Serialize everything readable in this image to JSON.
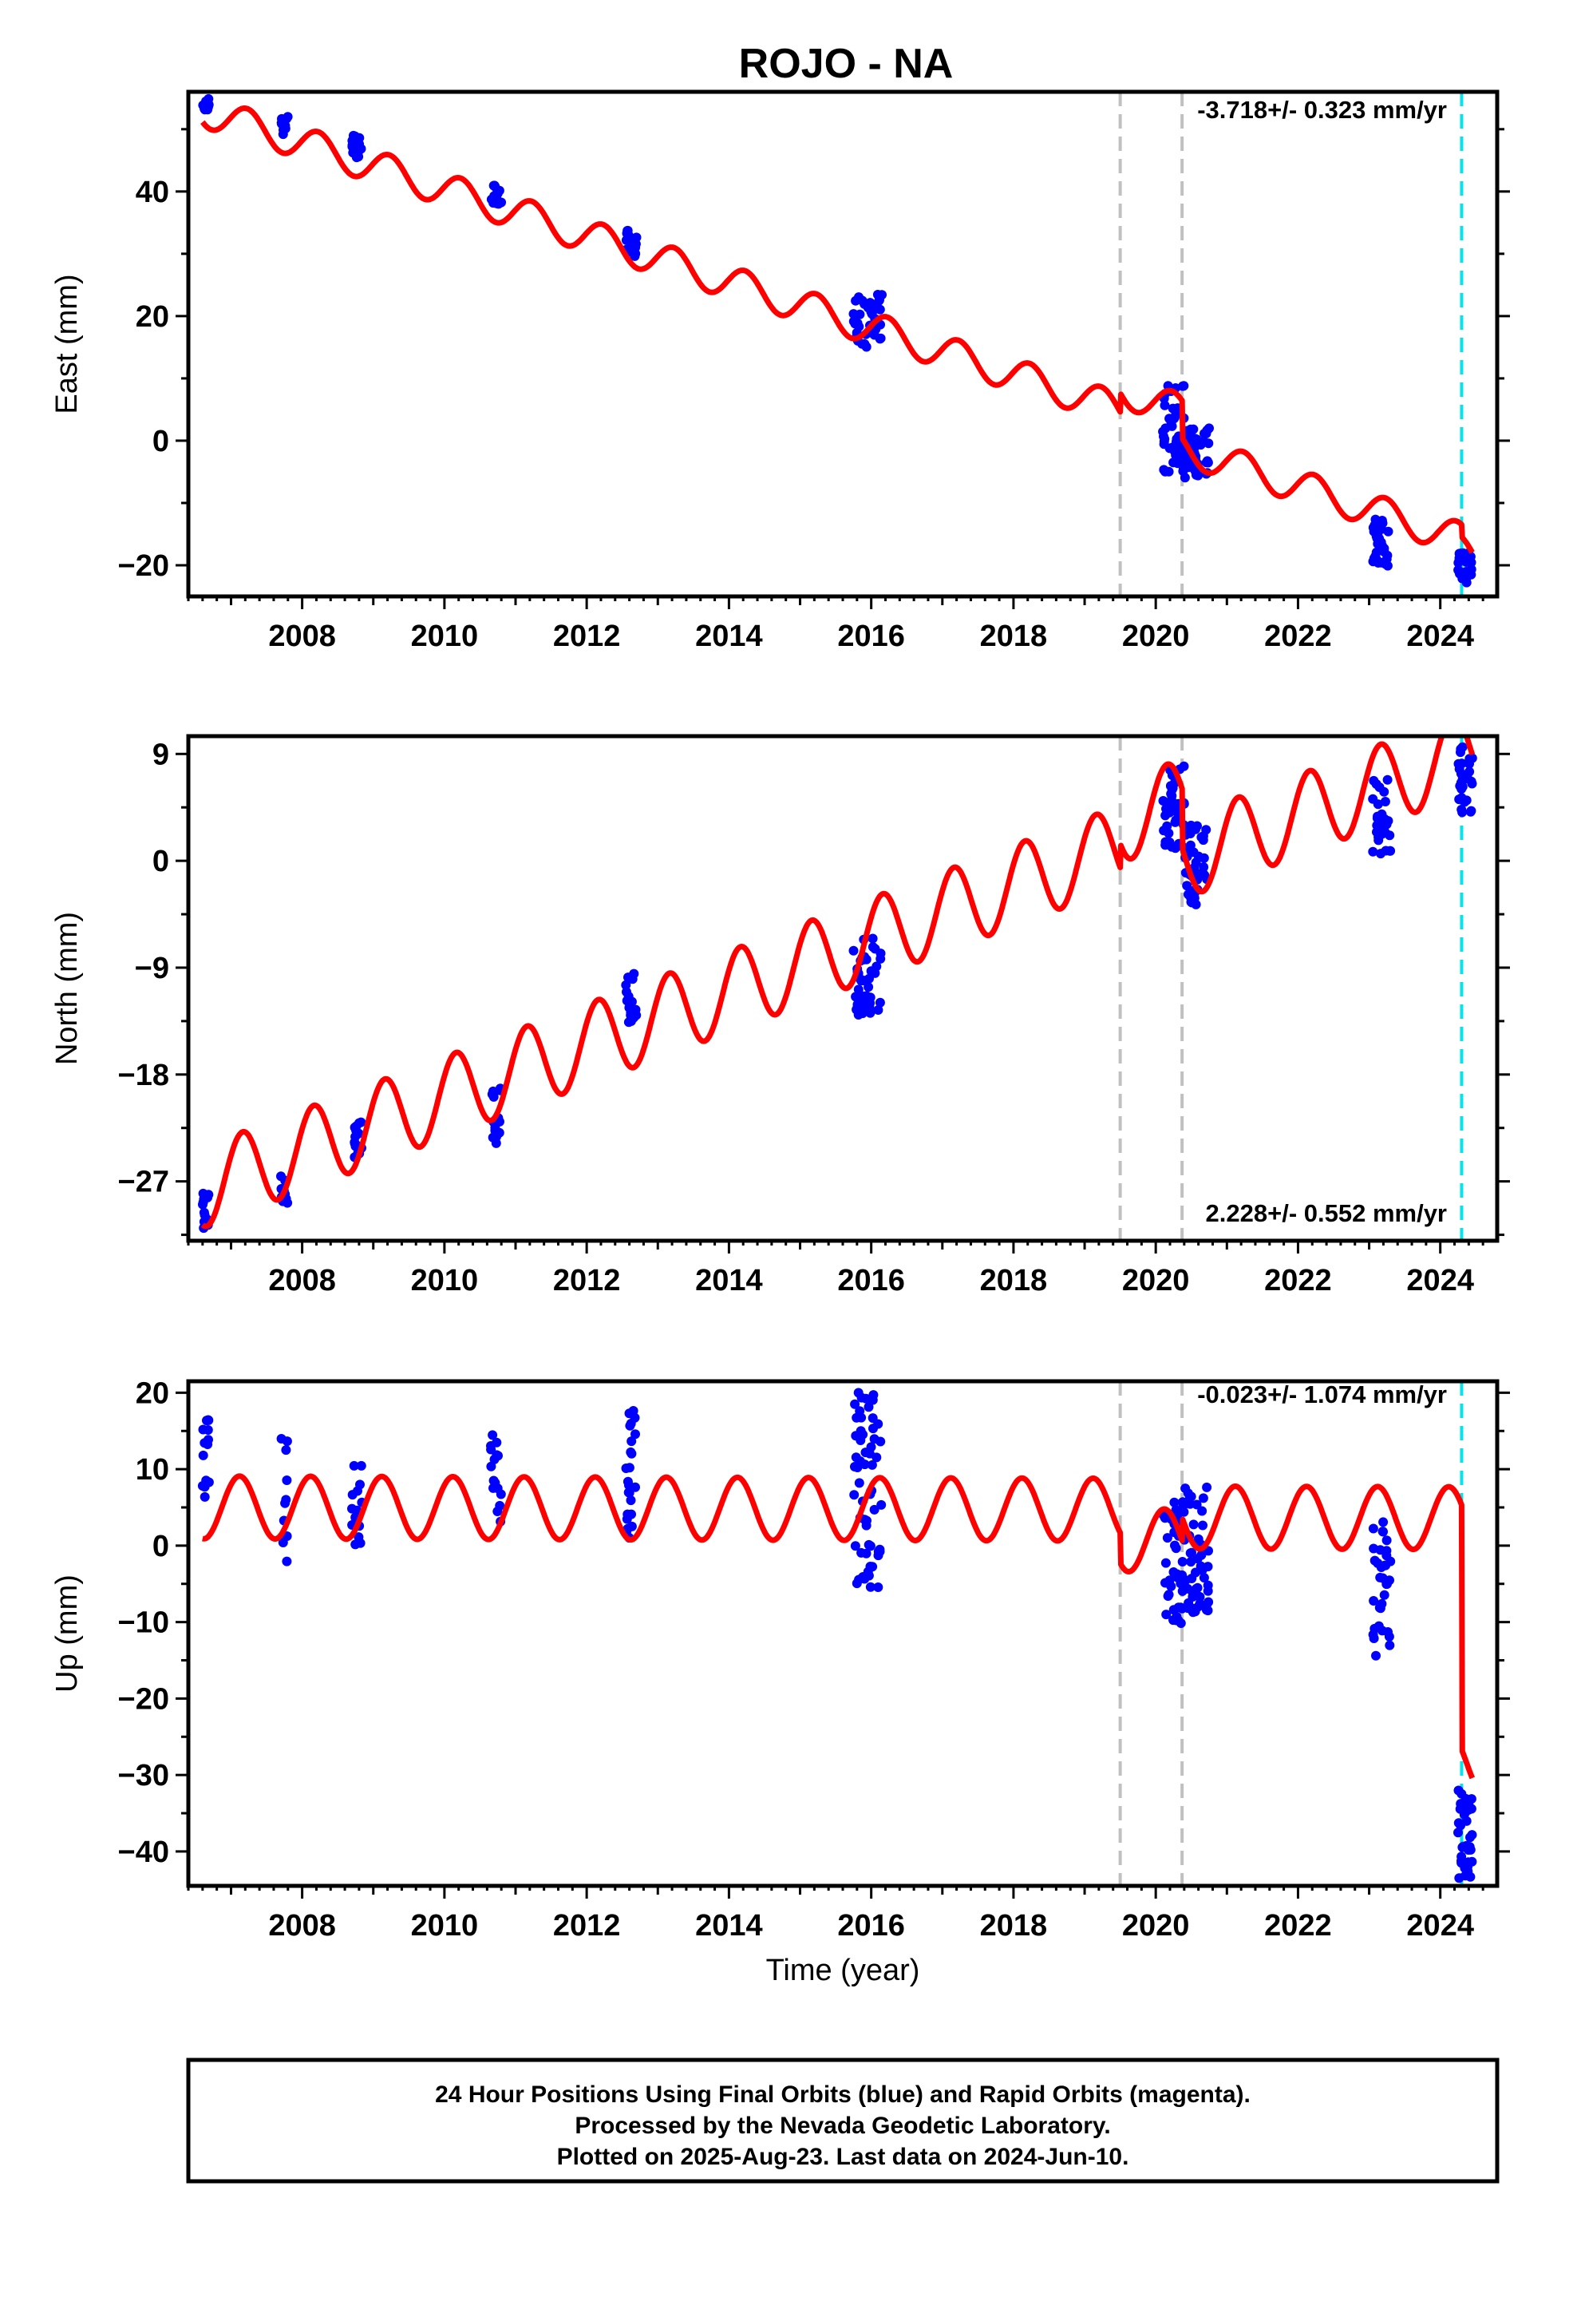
{
  "title": "ROJO - NA",
  "footer": {
    "line1": "24 Hour Positions Using Final Orbits (blue) and Rapid Orbits (magenta).",
    "line2": "Processed by the Nevada Geodetic Laboratory.",
    "line3": "Plotted on 2025-Aug-23. Last data on 2024-Jun-10."
  },
  "colors": {
    "data": "#0000ff",
    "model": "#ff0000",
    "gray_line": "#c0c0c0",
    "cyan_line": "#00e5ee",
    "frame": "#000000"
  },
  "chart_data": [
    {
      "type": "scatter",
      "component": "East",
      "ylabel": "East (mm)",
      "xlabel": "",
      "rate_text": "-3.718+/- 0.323 mm/yr",
      "xlim": [
        2006.4,
        2024.8
      ],
      "ylim": [
        -25,
        56
      ],
      "x_ticks": [
        2008,
        2010,
        2012,
        2014,
        2016,
        2018,
        2020,
        2022,
        2024
      ],
      "y_ticks": [
        -20,
        0,
        20,
        40
      ],
      "vlines_gray": [
        2019.5,
        2020.37
      ],
      "vline_cyan": 2024.3,
      "model": {
        "start_year": 2006.6,
        "start_value": 53.0,
        "rate": -3.718,
        "amp_sin": 2.6,
        "amp_cos": 0.4,
        "steps": [
          {
            "year": 2019.5,
            "size": 3.0
          },
          {
            "year": 2020.37,
            "size": -6.0
          },
          {
            "year": 2024.3,
            "size": -2.0
          }
        ]
      },
      "campaigns": [
        {
          "x0": 2006.6,
          "x1": 2006.7,
          "y": [
            53,
            55
          ],
          "n": 14
        },
        {
          "x0": 2007.7,
          "x1": 2007.8,
          "y": [
            49,
            52
          ],
          "n": 10
        },
        {
          "x0": 2008.7,
          "x1": 2008.85,
          "y": [
            45,
            49
          ],
          "n": 16
        },
        {
          "x0": 2010.65,
          "x1": 2010.8,
          "y": [
            38,
            41
          ],
          "n": 16
        },
        {
          "x0": 2012.55,
          "x1": 2012.7,
          "y": [
            29,
            34
          ],
          "n": 18
        },
        {
          "x0": 2015.75,
          "x1": 2016.15,
          "y": [
            15,
            24
          ],
          "n": 45
        },
        {
          "x0": 2020.1,
          "x1": 2020.4,
          "y": [
            -5,
            9
          ],
          "n": 45
        },
        {
          "x0": 2020.4,
          "x1": 2020.75,
          "y": [
            -6,
            2
          ],
          "n": 45
        },
        {
          "x0": 2023.05,
          "x1": 2023.3,
          "y": [
            -21,
            -12
          ],
          "n": 30
        },
        {
          "x0": 2024.25,
          "x1": 2024.45,
          "y": [
            -23,
            -18
          ],
          "n": 30
        }
      ]
    },
    {
      "type": "scatter",
      "component": "North",
      "ylabel": "North (mm)",
      "xlabel": "",
      "rate_text": "2.228+/- 0.552 mm/yr",
      "xlim": [
        2006.4,
        2024.8
      ],
      "ylim": [
        -32,
        10.5
      ],
      "x_ticks": [
        2008,
        2010,
        2012,
        2014,
        2016,
        2018,
        2020,
        2022,
        2024
      ],
      "y_ticks": [
        -27,
        -18,
        -9,
        0,
        9
      ],
      "vlines_gray": [
        2019.5,
        2020.37
      ],
      "vline_cyan": 2024.3,
      "model": {
        "start_year": 2006.6,
        "start_value": -27.5,
        "rate": 2.228,
        "amp_sin": 2.9,
        "amp_cos": 1.8,
        "steps": [
          {
            "year": 2019.5,
            "size": 2.0
          },
          {
            "year": 2020.37,
            "size": -5.0
          },
          {
            "year": 2024.3,
            "size": 0.5
          }
        ]
      },
      "campaigns": [
        {
          "x0": 2006.6,
          "x1": 2006.7,
          "y": [
            -31,
            -28
          ],
          "n": 14
        },
        {
          "x0": 2007.7,
          "x1": 2007.8,
          "y": [
            -29,
            -26.5
          ],
          "n": 10
        },
        {
          "x0": 2008.7,
          "x1": 2008.85,
          "y": [
            -25,
            -22
          ],
          "n": 16
        },
        {
          "x0": 2010.65,
          "x1": 2010.8,
          "y": [
            -24,
            -19
          ],
          "n": 16
        },
        {
          "x0": 2012.55,
          "x1": 2012.7,
          "y": [
            -14,
            -9.5
          ],
          "n": 18
        },
        {
          "x0": 2015.75,
          "x1": 2016.15,
          "y": [
            -13,
            -6
          ],
          "n": 45
        },
        {
          "x0": 2020.1,
          "x1": 2020.4,
          "y": [
            1,
            8.5
          ],
          "n": 40
        },
        {
          "x0": 2020.4,
          "x1": 2020.75,
          "y": [
            -4,
            3
          ],
          "n": 45
        },
        {
          "x0": 2023.05,
          "x1": 2023.3,
          "y": [
            0,
            7
          ],
          "n": 30
        },
        {
          "x0": 2024.25,
          "x1": 2024.45,
          "y": [
            4,
            10
          ],
          "n": 30
        }
      ]
    },
    {
      "type": "scatter",
      "component": "Up",
      "ylabel": "Up (mm)",
      "xlabel": "Time (year)",
      "rate_text": "-0.023+/- 1.074 mm/yr",
      "xlim": [
        2006.4,
        2024.8
      ],
      "ylim": [
        -44.5,
        21.5
      ],
      "x_ticks": [
        2008,
        2010,
        2012,
        2014,
        2016,
        2018,
        2020,
        2022,
        2024
      ],
      "y_ticks": [
        -40,
        -30,
        -20,
        -10,
        0,
        10,
        20
      ],
      "vlines_gray": [
        2019.5,
        2020.37
      ],
      "vline_cyan": 2024.3,
      "model": {
        "start_year": 2006.6,
        "start_value": 5.0,
        "rate": -0.023,
        "amp_sin": 2.8,
        "amp_cos": 3.0,
        "steps": [
          {
            "year": 2019.5,
            "size": -4.0
          },
          {
            "year": 2020.37,
            "size": 3.0
          },
          {
            "year": 2024.3,
            "size": -32.0
          }
        ]
      },
      "campaigns": [
        {
          "x0": 2006.6,
          "x1": 2006.7,
          "y": [
            6,
            16.5
          ],
          "n": 14
        },
        {
          "x0": 2007.7,
          "x1": 2007.8,
          "y": [
            -3,
            14
          ],
          "n": 10
        },
        {
          "x0": 2008.7,
          "x1": 2008.85,
          "y": [
            -2,
            12
          ],
          "n": 16
        },
        {
          "x0": 2010.65,
          "x1": 2010.8,
          "y": [
            3,
            15
          ],
          "n": 16
        },
        {
          "x0": 2012.55,
          "x1": 2012.7,
          "y": [
            1,
            18
          ],
          "n": 24
        },
        {
          "x0": 2015.75,
          "x1": 2016.15,
          "y": [
            -5.5,
            20
          ],
          "n": 60
        },
        {
          "x0": 2020.1,
          "x1": 2020.4,
          "y": [
            -10.5,
            6
          ],
          "n": 45
        },
        {
          "x0": 2020.4,
          "x1": 2020.75,
          "y": [
            -9,
            8
          ],
          "n": 50
        },
        {
          "x0": 2023.05,
          "x1": 2023.3,
          "y": [
            -16.5,
            4.5
          ],
          "n": 35
        },
        {
          "x0": 2024.25,
          "x1": 2024.45,
          "y": [
            -43.5,
            -32
          ],
          "n": 35
        }
      ]
    }
  ]
}
